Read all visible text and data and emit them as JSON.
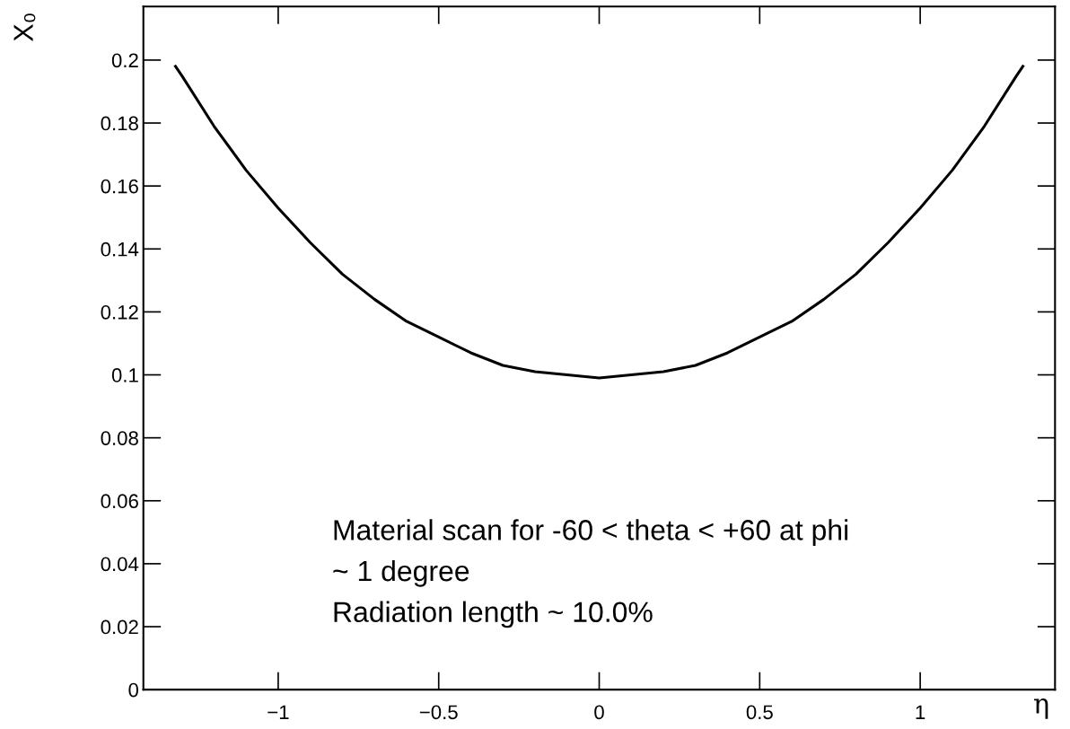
{
  "chart_data": {
    "type": "line",
    "xlabel": "η",
    "ylabel": "X₀",
    "annotations": [
      "Material scan for -60 < theta < +60 at phi",
      "~ 1 degree",
      "Radiation length ~ 10.0%"
    ],
    "x": [
      -1.32,
      -1.3,
      -1.2,
      -1.1,
      -1.0,
      -0.9,
      -0.8,
      -0.7,
      -0.6,
      -0.5,
      -0.4,
      -0.3,
      -0.2,
      -0.1,
      0,
      0.1,
      0.2,
      0.3,
      0.4,
      0.5,
      0.6,
      0.7,
      0.8,
      0.9,
      1.0,
      1.1,
      1.2,
      1.3,
      1.32
    ],
    "series": [
      {
        "color": "#000000",
        "values": [
          0.198,
          0.195,
          0.179,
          0.165,
          0.153,
          0.142,
          0.132,
          0.124,
          0.117,
          0.112,
          0.107,
          0.103,
          0.101,
          0.1,
          0.099,
          0.1,
          0.101,
          0.103,
          0.107,
          0.112,
          0.117,
          0.124,
          0.132,
          0.142,
          0.153,
          0.165,
          0.179,
          0.195,
          0.198
        ]
      }
    ],
    "xlim": [
      -1.42,
      1.42
    ],
    "ylim": [
      0,
      0.217
    ],
    "xticks": [
      {
        "value": -1,
        "label": "−1"
      },
      {
        "value": -0.5,
        "label": "−0.5"
      },
      0,
      0.5,
      1
    ],
    "yticks": [
      0,
      0.02,
      0.04,
      0.06,
      0.08,
      0.1,
      0.12,
      0.14,
      0.16,
      0.18,
      0.2
    ],
    "grid": false,
    "legend": false,
    "marker": "none",
    "line_style": "solid"
  }
}
